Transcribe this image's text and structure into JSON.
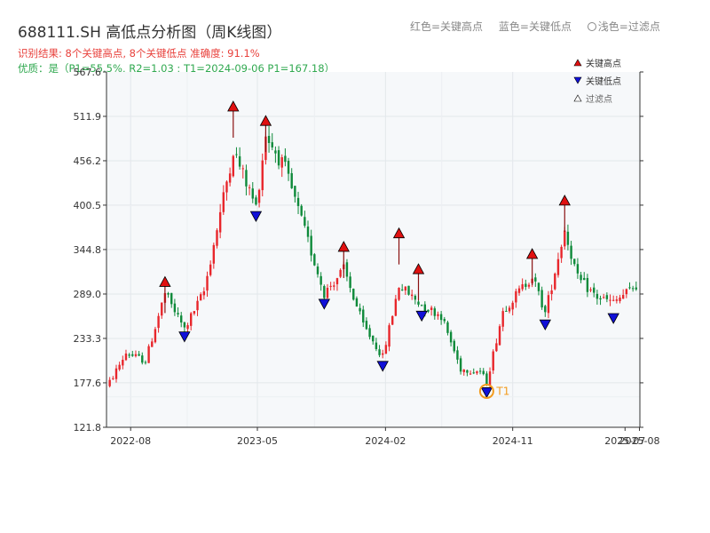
{
  "header": {
    "title": "688111.SH 高低点分析图（周K线图）",
    "legend_red": "红色=关键高点",
    "legend_blue": "蓝色=关键低点",
    "legend_filter": "浅色=过滤点",
    "result": "识别结果: 8个关键高点, 8个关键低点  准确度: 91.1%",
    "quality": "优质：是（P1=55.5%, R2=1.03 ; T1=2024-09-06 P1=167.18）"
  },
  "chart_data": {
    "type": "candlestick",
    "ylim": [
      121.8,
      567.6
    ],
    "yticks": [
      "121.8",
      "177.6",
      "233.3",
      "289.0",
      "344.8",
      "400.5",
      "456.2",
      "511.9",
      "567.6"
    ],
    "xticks": [
      "2022-08",
      "2023-05",
      "2024-02",
      "2024-11",
      "2025-07",
      "2025-08"
    ],
    "colors": {
      "up": "#e8262b",
      "down": "#0e8a3a",
      "high_marker": "#e01010",
      "low_marker": "#1010d8",
      "t1": "#f29b1d"
    },
    "legend": {
      "high": "关键高点",
      "low": "关键低点",
      "filter": "过滤点"
    },
    "t1_label": "T1",
    "key_highs": [
      {
        "date": "2022-10-14",
        "value": 303
      },
      {
        "date": "2023-03-10",
        "value": 523
      },
      {
        "date": "2023-05-19",
        "value": 505
      },
      {
        "date": "2023-11-03",
        "value": 347
      },
      {
        "date": "2024-03-01",
        "value": 364
      },
      {
        "date": "2024-04-12",
        "value": 319
      },
      {
        "date": "2024-12-13",
        "value": 338
      },
      {
        "date": "2025-02-21",
        "value": 405
      }
    ],
    "key_lows": [
      {
        "date": "2022-11-25",
        "value": 237
      },
      {
        "date": "2023-04-28",
        "value": 388
      },
      {
        "date": "2023-09-22",
        "value": 278
      },
      {
        "date": "2024-01-26",
        "value": 200
      },
      {
        "date": "2024-04-19",
        "value": 263
      },
      {
        "date": "2024-09-06",
        "value": 167
      },
      {
        "date": "2025-01-10",
        "value": 252
      },
      {
        "date": "2025-06-06",
        "value": 260
      }
    ],
    "key_waypoints": [
      {
        "date": "2022-06-01",
        "value": 162
      },
      {
        "date": "2022-07-22",
        "value": 215
      },
      {
        "date": "2022-09-02",
        "value": 205
      },
      {
        "date": "2022-10-14",
        "value": 290
      },
      {
        "date": "2022-11-25",
        "value": 245
      },
      {
        "date": "2023-01-06",
        "value": 292
      },
      {
        "date": "2023-03-10",
        "value": 470
      },
      {
        "date": "2023-04-28",
        "value": 398
      },
      {
        "date": "2023-05-19",
        "value": 490
      },
      {
        "date": "2023-06-30",
        "value": 445
      },
      {
        "date": "2023-08-11",
        "value": 368
      },
      {
        "date": "2023-09-22",
        "value": 290
      },
      {
        "date": "2023-11-03",
        "value": 320
      },
      {
        "date": "2023-12-15",
        "value": 250
      },
      {
        "date": "2024-01-26",
        "value": 210
      },
      {
        "date": "2024-03-01",
        "value": 300
      },
      {
        "date": "2024-04-19",
        "value": 275
      },
      {
        "date": "2024-05-31",
        "value": 262
      },
      {
        "date": "2024-07-12",
        "value": 195
      },
      {
        "date": "2024-08-23",
        "value": 192
      },
      {
        "date": "2024-09-06",
        "value": 178
      },
      {
        "date": "2024-10-11",
        "value": 268
      },
      {
        "date": "2024-12-13",
        "value": 312
      },
      {
        "date": "2025-01-10",
        "value": 265
      },
      {
        "date": "2025-02-21",
        "value": 370
      },
      {
        "date": "2025-03-21",
        "value": 308
      },
      {
        "date": "2025-05-02",
        "value": 285
      },
      {
        "date": "2025-06-06",
        "value": 278
      },
      {
        "date": "2025-07-25",
        "value": 300
      }
    ]
  }
}
